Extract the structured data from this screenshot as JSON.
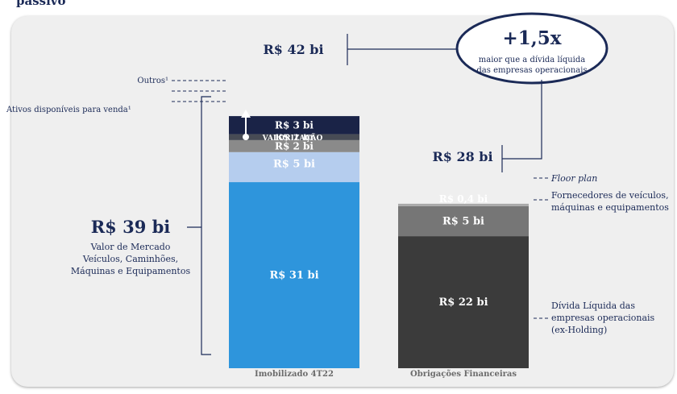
{
  "header_fragment": "passivo",
  "chart_data": {
    "type": "bar",
    "stacked": true,
    "categories": [
      "Imobilizado 4T22",
      "Obrigações Financeiras"
    ],
    "totals": [
      "R$ 42 bi",
      "R$ 28 bi"
    ],
    "unit": "R$ bi",
    "series": [
      {
        "name": "Valor de Mercado Veículos, Caminhões, Máquinas e Equipamentos",
        "values": [
          31,
          null
        ],
        "labels": [
          "R$ 31 bi",
          ""
        ],
        "color": "#2e95dc"
      },
      {
        "name": "Valorização",
        "values": [
          5,
          null
        ],
        "labels": [
          "R$ 5 bi",
          ""
        ],
        "color": "#b5cdee"
      },
      {
        "name": "Ativos disponíveis para venda¹",
        "values": [
          2,
          null
        ],
        "labels": [
          "R$ 2 bi",
          ""
        ],
        "color": "#8a8a8a"
      },
      {
        "name": "Outros¹",
        "values": [
          1,
          null
        ],
        "labels": [
          "R$ 1 bi",
          ""
        ],
        "color": "#474b55"
      },
      {
        "name": "",
        "values": [
          3,
          null
        ],
        "labels": [
          "R$ 3 bi",
          ""
        ],
        "color": "#1a2347"
      },
      {
        "name": "Dívida Líquida das empresas operacionais (ex-Holding)",
        "values": [
          null,
          22
        ],
        "labels": [
          "",
          "R$ 22 bi"
        ],
        "color": "#3b3b3b"
      },
      {
        "name": "Fornecedores de veículos, máquinas e equipamentos",
        "values": [
          null,
          5
        ],
        "labels": [
          "",
          "R$ 5 bi"
        ],
        "color": "#767676"
      },
      {
        "name": "Floor plan",
        "values": [
          null,
          0.4
        ],
        "labels": [
          "",
          "R$ 0,4 bi"
        ],
        "color": "#a9a9a9"
      }
    ],
    "annotations": {
      "valorizacao_label": "VALORIZAÇÃO",
      "bracket_value": "R$ 39 bi",
      "bracket_lines": [
        "Valor de Mercado",
        "Veículos, Caminhões,",
        "Máquinas e Equipamentos"
      ],
      "outros": "Outros¹",
      "ativos": "Ativos disponíveis para venda¹",
      "floor_plan": "Floor plan",
      "fornecedores": [
        "Fornecedores de veículos,",
        "máquinas e equipamentos"
      ],
      "divida": [
        "Dívida Líquida das",
        "empresas operacionais",
        "(ex-Holding)"
      ],
      "ratio_value": "+1,5x",
      "ratio_lines": [
        "maior que a dívida líquida",
        "das empresas operacionais"
      ]
    },
    "colors": {
      "navy": "#1b2a57",
      "frame": "#efefef"
    }
  }
}
